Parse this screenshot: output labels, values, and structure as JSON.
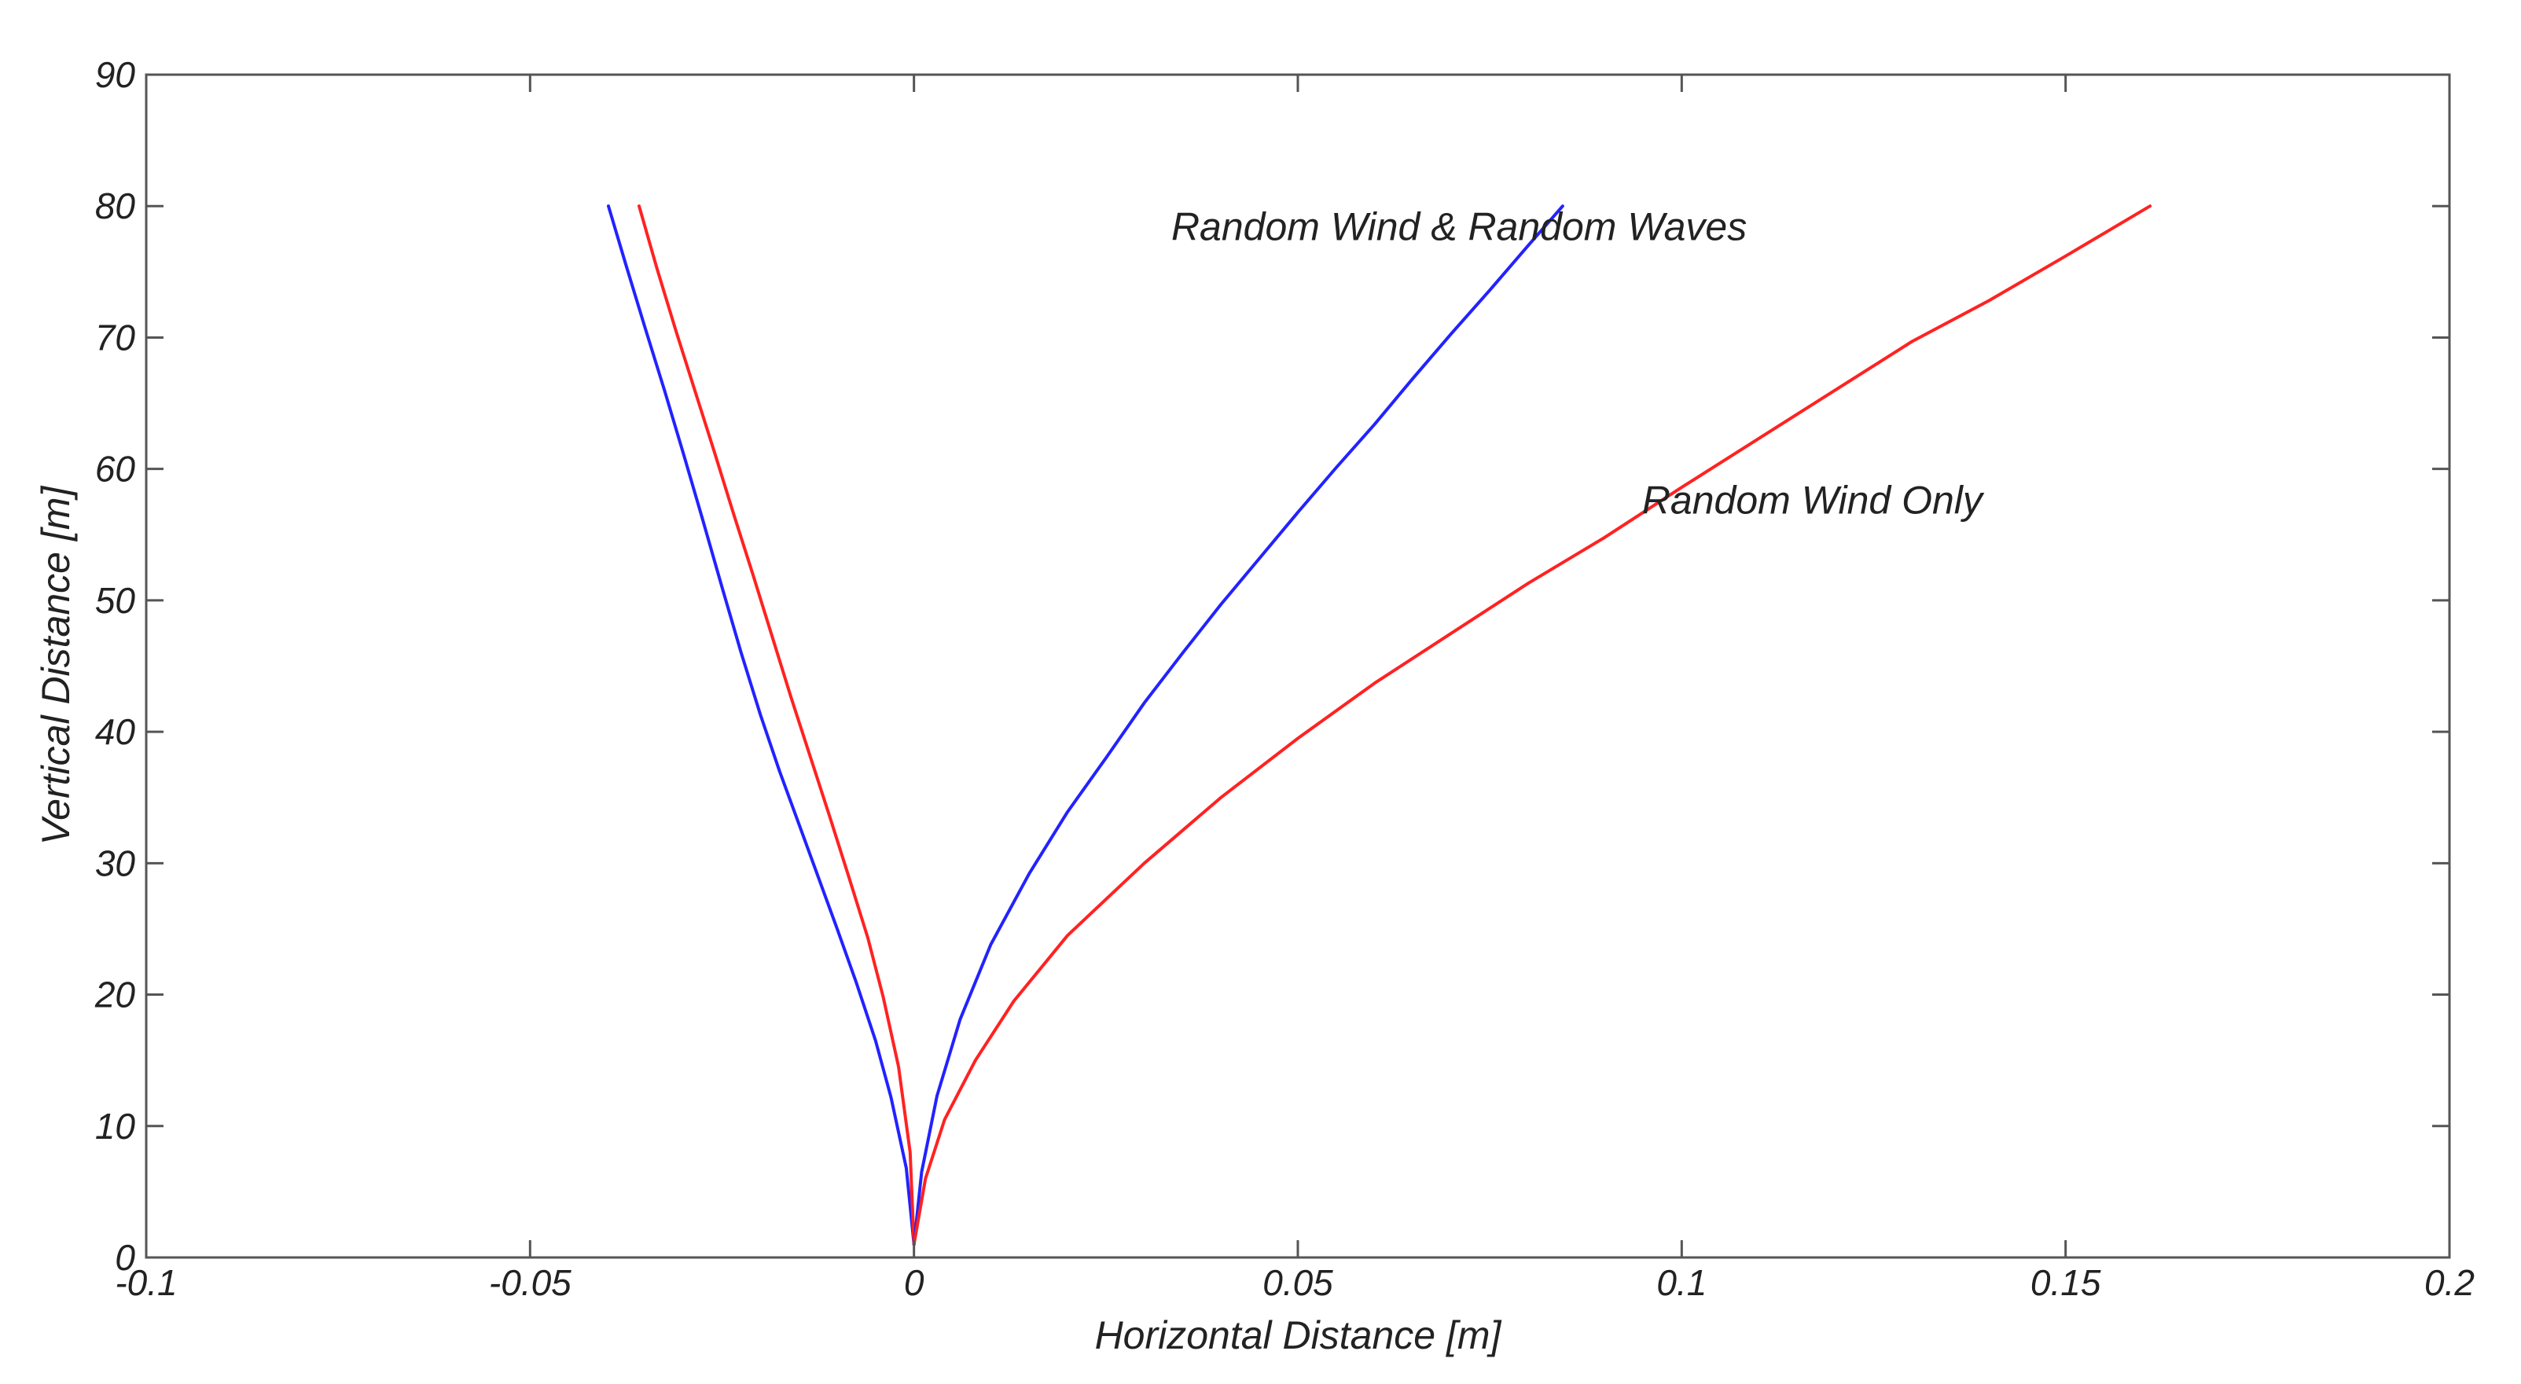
{
  "chart_data": {
    "type": "line",
    "title": "",
    "xlabel": "Horizontal Distance [m]",
    "ylabel": "Vertical Distance [m]",
    "xlim": [
      -0.1,
      0.2
    ],
    "ylim": [
      0,
      90
    ],
    "xticks": [
      -0.1,
      -0.05,
      0,
      0.05,
      0.1,
      0.15,
      0.2
    ],
    "xtick_labels": [
      "-0.1",
      "-0.05",
      "0",
      "0.05",
      "0.1",
      "0.15",
      "0.2"
    ],
    "yticks": [
      0,
      10,
      20,
      30,
      40,
      50,
      60,
      70,
      80,
      90
    ],
    "ytick_labels": [
      "0",
      "10",
      "20",
      "30",
      "40",
      "50",
      "60",
      "70",
      "80",
      "90"
    ],
    "grid": false,
    "annotations": [
      {
        "text": "Random Wind & Random Waves",
        "x": 0.071,
        "y": 77.4
      },
      {
        "text": "Random Wind Only",
        "x": 0.117,
        "y": 56.6
      }
    ],
    "series": [
      {
        "color": "#2222ff",
        "x": [
          -0.0398,
          -0.0375,
          -0.035,
          -0.0325,
          -0.03,
          -0.0275,
          -0.025,
          -0.0225,
          -0.02,
          -0.0175,
          -0.015,
          -0.0125,
          -0.01,
          -0.0075,
          -0.005,
          -0.003,
          -0.001,
          0.0
        ],
        "y": [
          80,
          75.5,
          70.7,
          66.0,
          61.1,
          56.1,
          51.0,
          46.0,
          41.3,
          37.0,
          33.0,
          29.0,
          25.0,
          20.9,
          16.5,
          12.2,
          6.8,
          1.0
        ]
      },
      {
        "color": "#ff2222",
        "x": [
          -0.0358,
          -0.0335,
          -0.031,
          -0.0285,
          -0.026,
          -0.0235,
          -0.021,
          -0.0185,
          -0.016,
          -0.0135,
          -0.011,
          -0.0085,
          -0.006,
          -0.004,
          -0.002,
          -0.0005,
          0.0
        ],
        "y": [
          80,
          75.3,
          70.5,
          65.9,
          61.3,
          56.6,
          52.0,
          47.3,
          42.6,
          38.1,
          33.6,
          29.0,
          24.3,
          19.8,
          14.5,
          8.0,
          1.0
        ]
      },
      {
        "color": "#2222ff",
        "x": [
          0.0,
          0.001,
          0.003,
          0.006,
          0.01,
          0.015,
          0.02,
          0.025,
          0.03,
          0.035,
          0.04,
          0.045,
          0.05,
          0.055,
          0.06,
          0.065,
          0.07,
          0.075,
          0.08,
          0.0845
        ],
        "y": [
          1.0,
          6.5,
          12.3,
          18.1,
          23.8,
          29.2,
          33.9,
          38.0,
          42.2,
          46.0,
          49.7,
          53.2,
          56.7,
          60.1,
          63.4,
          66.9,
          70.3,
          73.6,
          77.0,
          80.0
        ]
      },
      {
        "color": "#ff2222",
        "x": [
          0.0,
          0.0015,
          0.004,
          0.008,
          0.013,
          0.02,
          0.03,
          0.04,
          0.05,
          0.06,
          0.07,
          0.08,
          0.09,
          0.1,
          0.11,
          0.12,
          0.13,
          0.14,
          0.15,
          0.161
        ],
        "y": [
          1.0,
          6.0,
          10.5,
          15.0,
          19.5,
          24.5,
          30.0,
          35.0,
          39.5,
          43.7,
          47.5,
          51.3,
          54.8,
          58.6,
          62.3,
          66.0,
          69.7,
          72.8,
          76.2,
          80.0
        ]
      }
    ]
  }
}
